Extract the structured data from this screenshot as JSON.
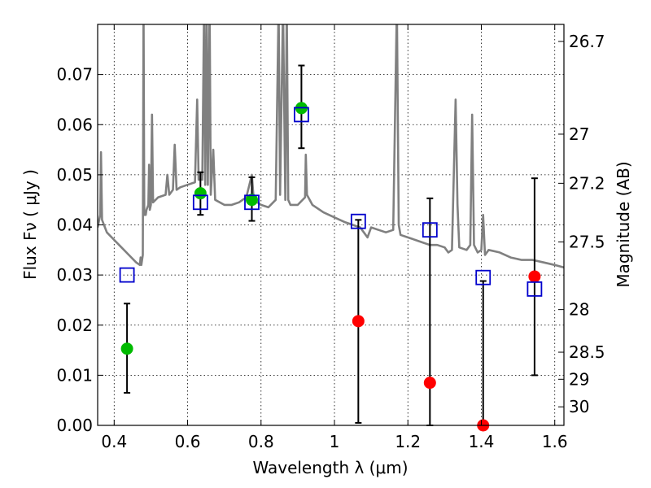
{
  "chart_data": {
    "type": "scatter",
    "xlabel": "Wavelength  λ (μm)",
    "ylabel": "Flux  Fν  ( μJy )",
    "y2label": "Magnitude (AB)",
    "xlim": [
      0.355,
      1.625
    ],
    "ylim": [
      0.0,
      0.08
    ],
    "grid": true,
    "xticks": [
      0.4,
      0.6,
      0.8,
      1.0,
      1.2,
      1.4,
      1.6
    ],
    "xtick_labels": [
      "0.4",
      "0.6",
      "0.8",
      "1",
      "1.2",
      "1.4",
      "1.6"
    ],
    "yticks": [
      0.0,
      0.01,
      0.02,
      0.03,
      0.04,
      0.05,
      0.06,
      0.07
    ],
    "ytick_labels": [
      "0.00",
      "0.01",
      "0.02",
      "0.03",
      "0.04",
      "0.05",
      "0.06",
      "0.07"
    ],
    "right_ticks": [
      {
        "label": "26.7",
        "flux": 0.0766
      },
      {
        "label": "27",
        "flux": 0.0581
      },
      {
        "label": "27.2",
        "flux": 0.0483
      },
      {
        "label": "27.5",
        "flux": 0.0366
      },
      {
        "label": "28",
        "flux": 0.0231
      },
      {
        "label": "28.5",
        "flux": 0.0146
      },
      {
        "label": "29",
        "flux": 0.0092
      },
      {
        "label": "30",
        "flux": 0.0037
      }
    ],
    "colors": {
      "spectrum": "#808080",
      "detection": "#00bb00",
      "nondetection": "#ff0000",
      "model": "#0000cc",
      "errorbar": "#000000",
      "grid": "#000000"
    },
    "observed": [
      {
        "x": 0.435,
        "y": 0.0153,
        "yerr_lo": 0.0065,
        "yerr_hi": 0.0243,
        "color": "green"
      },
      {
        "x": 0.635,
        "y": 0.0463,
        "yerr_lo": 0.042,
        "yerr_hi": 0.0505,
        "color": "green"
      },
      {
        "x": 0.775,
        "y": 0.045,
        "yerr_lo": 0.0408,
        "yerr_hi": 0.0495,
        "color": "green"
      },
      {
        "x": 0.91,
        "y": 0.0633,
        "yerr_lo": 0.0553,
        "yerr_hi": 0.0718,
        "color": "green"
      },
      {
        "x": 1.065,
        "y": 0.0208,
        "yerr_lo": 0.0005,
        "yerr_hi": 0.041,
        "color": "red"
      },
      {
        "x": 1.26,
        "y": 0.0085,
        "yerr_lo": 0.0,
        "yerr_hi": 0.0453,
        "color": "red"
      },
      {
        "x": 1.405,
        "y": 0.0,
        "yerr_lo": 0.0,
        "yerr_hi": 0.0288,
        "color": "red"
      },
      {
        "x": 1.545,
        "y": 0.0297,
        "yerr_lo": 0.01,
        "yerr_hi": 0.0493,
        "color": "red"
      }
    ],
    "model": [
      {
        "x": 0.435,
        "y": 0.03
      },
      {
        "x": 0.635,
        "y": 0.0445
      },
      {
        "x": 0.775,
        "y": 0.0445
      },
      {
        "x": 0.91,
        "y": 0.062
      },
      {
        "x": 1.065,
        "y": 0.0407
      },
      {
        "x": 1.26,
        "y": 0.039
      },
      {
        "x": 1.405,
        "y": 0.0295
      },
      {
        "x": 1.545,
        "y": 0.0272
      }
    ],
    "spectrum": [
      [
        0.355,
        0.0395
      ],
      [
        0.362,
        0.042
      ],
      [
        0.364,
        0.0545
      ],
      [
        0.367,
        0.041
      ],
      [
        0.38,
        0.0385
      ],
      [
        0.4,
        0.037
      ],
      [
        0.42,
        0.0355
      ],
      [
        0.44,
        0.034
      ],
      [
        0.46,
        0.0325
      ],
      [
        0.47,
        0.032
      ],
      [
        0.472,
        0.0335
      ],
      [
        0.474,
        0.032
      ],
      [
        0.476,
        0.033
      ],
      [
        0.478,
        0.034
      ],
      [
        0.48,
        0.084
      ],
      [
        0.482,
        0.042
      ],
      [
        0.486,
        0.042
      ],
      [
        0.488,
        0.043
      ],
      [
        0.493,
        0.044
      ],
      [
        0.495,
        0.052
      ],
      [
        0.497,
        0.043
      ],
      [
        0.5,
        0.044
      ],
      [
        0.503,
        0.062
      ],
      [
        0.506,
        0.0445
      ],
      [
        0.52,
        0.0455
      ],
      [
        0.54,
        0.046
      ],
      [
        0.545,
        0.05
      ],
      [
        0.55,
        0.046
      ],
      [
        0.56,
        0.047
      ],
      [
        0.565,
        0.056
      ],
      [
        0.57,
        0.047
      ],
      [
        0.58,
        0.0475
      ],
      [
        0.6,
        0.048
      ],
      [
        0.62,
        0.0485
      ],
      [
        0.626,
        0.065
      ],
      [
        0.63,
        0.049
      ],
      [
        0.64,
        0.049
      ],
      [
        0.645,
        0.084
      ],
      [
        0.648,
        0.048
      ],
      [
        0.652,
        0.084
      ],
      [
        0.655,
        0.048
      ],
      [
        0.66,
        0.084
      ],
      [
        0.663,
        0.046
      ],
      [
        0.67,
        0.055
      ],
      [
        0.675,
        0.045
      ],
      [
        0.7,
        0.044
      ],
      [
        0.72,
        0.044
      ],
      [
        0.74,
        0.0445
      ],
      [
        0.76,
        0.0455
      ],
      [
        0.775,
        0.05
      ],
      [
        0.78,
        0.045
      ],
      [
        0.8,
        0.044
      ],
      [
        0.82,
        0.0435
      ],
      [
        0.84,
        0.045
      ],
      [
        0.848,
        0.084
      ],
      [
        0.852,
        0.046
      ],
      [
        0.86,
        0.084
      ],
      [
        0.866,
        0.045
      ],
      [
        0.87,
        0.084
      ],
      [
        0.874,
        0.045
      ],
      [
        0.88,
        0.044
      ],
      [
        0.9,
        0.044
      ],
      [
        0.92,
        0.0455
      ],
      [
        0.922,
        0.054
      ],
      [
        0.925,
        0.046
      ],
      [
        0.94,
        0.044
      ],
      [
        0.97,
        0.0425
      ],
      [
        1.0,
        0.0415
      ],
      [
        1.03,
        0.0405
      ],
      [
        1.05,
        0.04
      ],
      [
        1.07,
        0.0395
      ],
      [
        1.08,
        0.0385
      ],
      [
        1.09,
        0.0375
      ],
      [
        1.1,
        0.0395
      ],
      [
        1.12,
        0.039
      ],
      [
        1.14,
        0.0385
      ],
      [
        1.16,
        0.039
      ],
      [
        1.17,
        0.084
      ],
      [
        1.175,
        0.04
      ],
      [
        1.18,
        0.038
      ],
      [
        1.2,
        0.0375
      ],
      [
        1.22,
        0.037
      ],
      [
        1.24,
        0.0365
      ],
      [
        1.26,
        0.036
      ],
      [
        1.28,
        0.036
      ],
      [
        1.3,
        0.0355
      ],
      [
        1.31,
        0.0345
      ],
      [
        1.32,
        0.035
      ],
      [
        1.33,
        0.065
      ],
      [
        1.335,
        0.044
      ],
      [
        1.34,
        0.0355
      ],
      [
        1.36,
        0.035
      ],
      [
        1.37,
        0.036
      ],
      [
        1.375,
        0.062
      ],
      [
        1.38,
        0.036
      ],
      [
        1.39,
        0.0345
      ],
      [
        1.4,
        0.035
      ],
      [
        1.405,
        0.042
      ],
      [
        1.41,
        0.034
      ],
      [
        1.42,
        0.035
      ],
      [
        1.45,
        0.0345
      ],
      [
        1.48,
        0.0335
      ],
      [
        1.51,
        0.033
      ],
      [
        1.54,
        0.033
      ],
      [
        1.57,
        0.0325
      ],
      [
        1.6,
        0.032
      ],
      [
        1.625,
        0.0315
      ]
    ]
  }
}
